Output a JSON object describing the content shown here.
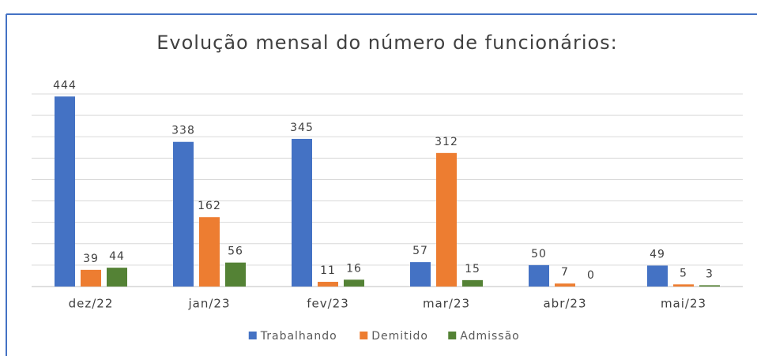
{
  "chart_data": {
    "type": "bar",
    "title": "Evolução mensal do número de funcionários:",
    "categories": [
      "dez/22",
      "jan/23",
      "fev/23",
      "mar/23",
      "abr/23",
      "mai/23"
    ],
    "series": [
      {
        "name": "Trabalhando",
        "color": "#4472c4",
        "values": [
          444,
          338,
          345,
          57,
          50,
          49
        ]
      },
      {
        "name": "Demitido",
        "color": "#ed7d31",
        "values": [
          39,
          162,
          11,
          312,
          7,
          5
        ]
      },
      {
        "name": "Admissão",
        "color": "#548235",
        "values": [
          44,
          56,
          16,
          15,
          0,
          3
        ]
      }
    ],
    "ylim": [
      0,
      450
    ],
    "yticks": [
      0,
      50,
      100,
      150,
      200,
      250,
      300,
      350,
      400,
      450
    ],
    "grid": true,
    "legend": "bottom"
  }
}
